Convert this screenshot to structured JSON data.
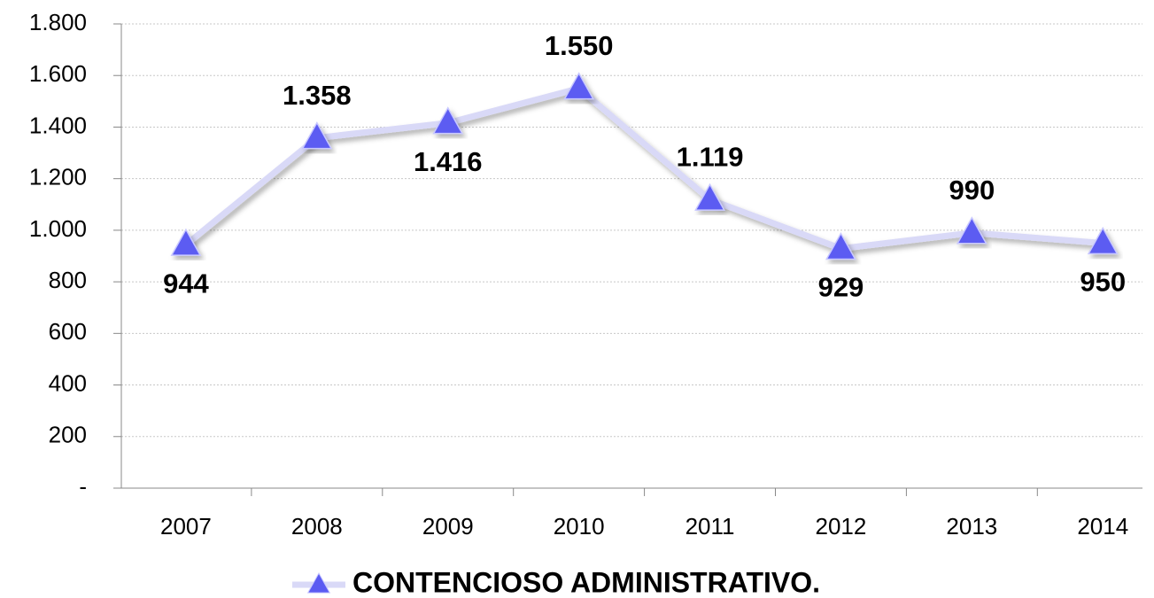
{
  "chart_data": {
    "type": "line",
    "categories": [
      "2007",
      "2008",
      "2009",
      "2010",
      "2011",
      "2012",
      "2013",
      "2014"
    ],
    "series": [
      {
        "name": "CONTENCIOSO ADMINISTRATIVO.",
        "color": "#5b5bf2",
        "line_color": "#d9d9f7",
        "values": [
          944,
          1358,
          1416,
          1550,
          1119,
          929,
          990,
          950
        ],
        "value_labels": [
          "944",
          "1.358",
          "1.416",
          "1.550",
          "1.119",
          "929",
          "990",
          "950"
        ]
      }
    ],
    "ylim": [
      0,
      1800
    ],
    "yticks": [
      {
        "value": 0,
        "label": "-"
      },
      200,
      400,
      600,
      800,
      {
        "value": 1000,
        "label": "1.000"
      },
      {
        "value": 1200,
        "label": "1.200"
      },
      {
        "value": 1400,
        "label": "1.400"
      },
      {
        "value": 1600,
        "label": "1.600"
      },
      {
        "value": 1800,
        "label": "1.800"
      }
    ],
    "grid": true,
    "legend": "bottom"
  }
}
